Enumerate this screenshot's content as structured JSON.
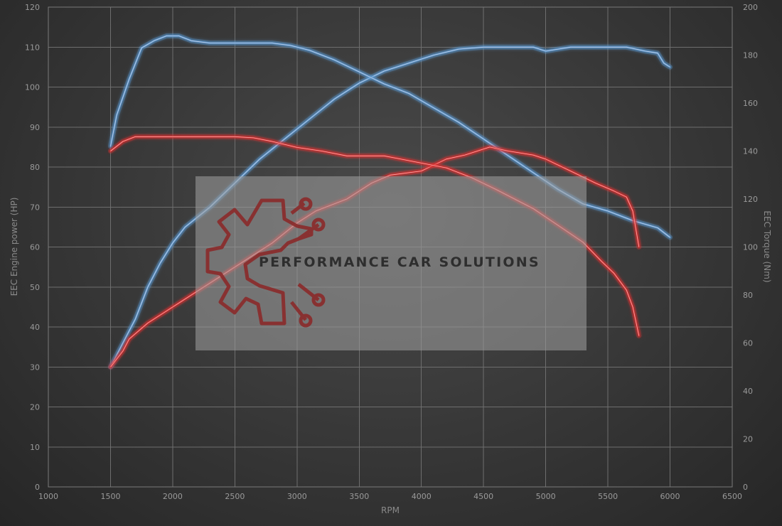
{
  "watermark": {
    "text": "PERFORMANCE CAR SOLUTIONS",
    "logo_icon": "gear-circuit-icon",
    "logo_color": "#8b2a2a",
    "panel_color": "#a0a0a0"
  },
  "chart_data": {
    "type": "line",
    "xlabel": "RPM",
    "ylabel_left": "EEC Engine power (HP)",
    "ylabel_right": "EEC Torque (Nm)",
    "xlim": [
      1000,
      6500
    ],
    "ylim_left": [
      0,
      120
    ],
    "ylim_right": [
      0,
      200
    ],
    "x_ticks": [
      1000,
      1500,
      2000,
      2500,
      3000,
      3500,
      4000,
      4500,
      5000,
      5500,
      6000,
      6500
    ],
    "y_left_ticks": [
      0,
      10,
      20,
      30,
      40,
      50,
      60,
      70,
      80,
      90,
      100,
      110,
      120
    ],
    "y_right_ticks": [
      0,
      20,
      40,
      60,
      80,
      100,
      120,
      140,
      160,
      180,
      200
    ],
    "grid": true,
    "colors": {
      "blue": "#5b9bd5",
      "red": "#e03030"
    },
    "series": [
      {
        "color": "blue",
        "axis": "left",
        "points": [
          [
            1500,
            30
          ],
          [
            1600,
            36
          ],
          [
            1700,
            42
          ],
          [
            1800,
            50
          ],
          [
            1900,
            56
          ],
          [
            2000,
            61
          ],
          [
            2100,
            65
          ],
          [
            2300,
            70
          ],
          [
            2500,
            76
          ],
          [
            2700,
            82
          ],
          [
            2900,
            87
          ],
          [
            3100,
            92
          ],
          [
            3300,
            97
          ],
          [
            3500,
            101
          ],
          [
            3700,
            104
          ],
          [
            3900,
            106
          ],
          [
            4100,
            108
          ],
          [
            4300,
            109.5
          ],
          [
            4500,
            110
          ],
          [
            4700,
            110
          ],
          [
            4900,
            110
          ],
          [
            5000,
            109
          ],
          [
            5100,
            109.5
          ],
          [
            5200,
            110
          ],
          [
            5400,
            110
          ],
          [
            5650,
            110
          ],
          [
            5800,
            109
          ],
          [
            5900,
            108.5
          ],
          [
            5950,
            106
          ],
          [
            6000,
            105
          ]
        ]
      },
      {
        "color": "blue",
        "axis": "right",
        "points": [
          [
            1500,
            142
          ],
          [
            1550,
            155
          ],
          [
            1650,
            170
          ],
          [
            1750,
            183
          ],
          [
            1850,
            186
          ],
          [
            1950,
            188
          ],
          [
            2050,
            188
          ],
          [
            2150,
            186
          ],
          [
            2300,
            185
          ],
          [
            2500,
            185
          ],
          [
            2800,
            185
          ],
          [
            2950,
            184
          ],
          [
            3100,
            182
          ],
          [
            3300,
            178
          ],
          [
            3500,
            173
          ],
          [
            3700,
            168
          ],
          [
            3900,
            164
          ],
          [
            4100,
            158
          ],
          [
            4300,
            152
          ],
          [
            4500,
            145
          ],
          [
            4700,
            138
          ],
          [
            4900,
            131
          ],
          [
            5100,
            124
          ],
          [
            5300,
            118
          ],
          [
            5500,
            115
          ],
          [
            5700,
            111
          ],
          [
            5900,
            108
          ],
          [
            6000,
            104
          ]
        ]
      },
      {
        "color": "red",
        "axis": "left",
        "points": [
          [
            1500,
            30
          ],
          [
            1600,
            34
          ],
          [
            1650,
            37
          ],
          [
            1800,
            41
          ],
          [
            2000,
            45
          ],
          [
            2200,
            49
          ],
          [
            2400,
            53
          ],
          [
            2600,
            57
          ],
          [
            2800,
            61
          ],
          [
            3000,
            66
          ],
          [
            3150,
            69
          ],
          [
            3400,
            72
          ],
          [
            3600,
            76
          ],
          [
            3750,
            78
          ],
          [
            4000,
            79
          ],
          [
            4200,
            82
          ],
          [
            4350,
            83
          ],
          [
            4550,
            85
          ],
          [
            4700,
            84
          ],
          [
            4900,
            83
          ],
          [
            5000,
            82
          ],
          [
            5200,
            79
          ],
          [
            5400,
            76
          ],
          [
            5550,
            74
          ],
          [
            5650,
            72.5
          ],
          [
            5700,
            69
          ],
          [
            5750,
            60
          ]
        ]
      },
      {
        "color": "red",
        "axis": "right",
        "points": [
          [
            1500,
            140
          ],
          [
            1600,
            144
          ],
          [
            1700,
            146
          ],
          [
            1800,
            146
          ],
          [
            2000,
            146
          ],
          [
            2300,
            146
          ],
          [
            2500,
            146
          ],
          [
            2650,
            145.5
          ],
          [
            2800,
            144
          ],
          [
            3000,
            141.5
          ],
          [
            3200,
            140
          ],
          [
            3400,
            138
          ],
          [
            3500,
            138
          ],
          [
            3700,
            138
          ],
          [
            3800,
            137
          ],
          [
            4000,
            135
          ],
          [
            4200,
            133
          ],
          [
            4400,
            129
          ],
          [
            4600,
            124
          ],
          [
            4750,
            120
          ],
          [
            4900,
            116
          ],
          [
            5100,
            109
          ],
          [
            5300,
            102
          ],
          [
            5450,
            94
          ],
          [
            5550,
            89
          ],
          [
            5650,
            82
          ],
          [
            5700,
            75
          ],
          [
            5750,
            63
          ]
        ]
      }
    ]
  }
}
